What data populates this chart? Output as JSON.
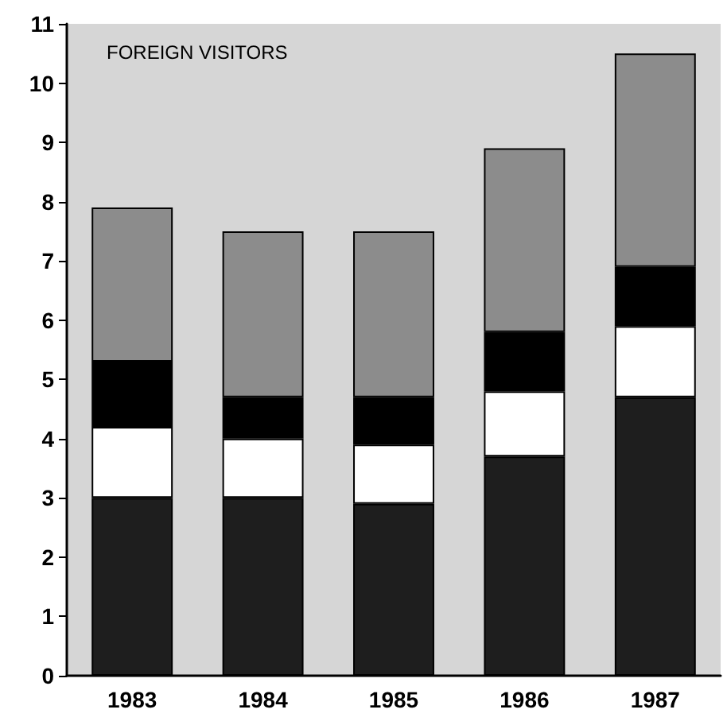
{
  "chart_data": {
    "type": "bar",
    "title": "FOREIGN VISITORS",
    "categories": [
      "1983",
      "1984",
      "1985",
      "1986",
      "1987"
    ],
    "stacked": true,
    "series": [
      {
        "color": "#1e1e1e",
        "values": [
          3.0,
          3.0,
          2.9,
          3.7,
          4.7
        ]
      },
      {
        "color": "#ffffff",
        "values": [
          1.2,
          1.0,
          1.0,
          1.1,
          1.2
        ]
      },
      {
        "color": "#000000",
        "values": [
          1.1,
          0.7,
          0.8,
          1.0,
          1.0
        ]
      },
      {
        "color": "#8c8c8c",
        "values": [
          2.6,
          2.8,
          2.8,
          3.1,
          3.6
        ]
      }
    ],
    "ylim": [
      0,
      11
    ],
    "yticks": [
      0,
      1,
      2,
      3,
      4,
      5,
      6,
      7,
      8,
      9,
      10,
      11
    ],
    "grid": false
  }
}
